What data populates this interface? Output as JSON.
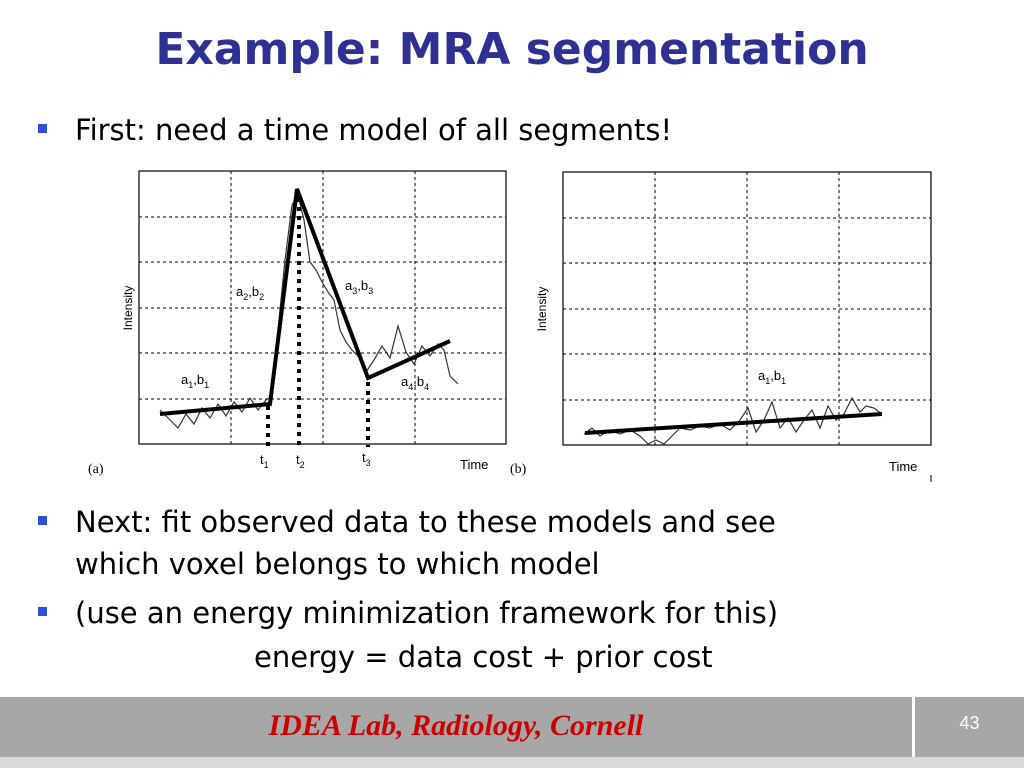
{
  "slide": {
    "title": "Example: MRA segmentation",
    "bullets": [
      "First: need a time model of all segments!",
      "Next: fit observed data to these models and see",
      "which voxel belongs to which model",
      "(use an energy minimization framework for this)"
    ],
    "equation": "energy = data cost + prior cost"
  },
  "figure_a": {
    "panel_label": "(a)",
    "ylabel": "Intensity",
    "xlabel": "Time",
    "segment_labels": [
      {
        "a": "a",
        "b": "b",
        "sub": "1"
      },
      {
        "a": "a",
        "b": "b",
        "sub": "2"
      },
      {
        "a": "a",
        "b": "b",
        "sub": "3"
      },
      {
        "a": "a",
        "b": "b",
        "sub": "4"
      }
    ],
    "time_marks": [
      {
        "t": "t",
        "sub": "1"
      },
      {
        "t": "t",
        "sub": "2"
      },
      {
        "t": "t",
        "sub": "3"
      }
    ]
  },
  "figure_b": {
    "panel_label": "(b)",
    "ylabel": "Intensity",
    "xlabel": "Time",
    "segment_label": {
      "a": "a",
      "b": "b",
      "sub": "1"
    }
  },
  "footer": {
    "text": "IDEA Lab, Radiology, Cornell",
    "page": "43"
  },
  "colors": {
    "title": "#2e3192",
    "bullet": "#2e4fd6",
    "footer_bg": "#a7a7a7",
    "footer_text": "#cc0000"
  }
}
